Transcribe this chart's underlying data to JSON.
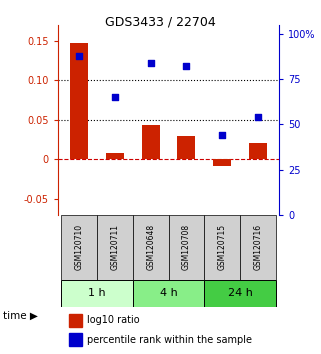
{
  "title": "GDS3433 / 22704",
  "samples": [
    "GSM120710",
    "GSM120711",
    "GSM120648",
    "GSM120708",
    "GSM120715",
    "GSM120716"
  ],
  "log10_ratio": [
    0.147,
    0.008,
    0.044,
    0.029,
    -0.008,
    0.021
  ],
  "percentile_rank": [
    88,
    65,
    84,
    82,
    44,
    54
  ],
  "groups": [
    {
      "label": "1 h",
      "samples": [
        0,
        1
      ],
      "color": "#ccffcc"
    },
    {
      "label": "4 h",
      "samples": [
        2,
        3
      ],
      "color": "#88ee88"
    },
    {
      "label": "24 h",
      "samples": [
        4,
        5
      ],
      "color": "#44cc44"
    }
  ],
  "bar_color": "#cc2200",
  "dot_color": "#0000cc",
  "ylim_left": [
    -0.07,
    0.17
  ],
  "ylim_right": [
    0,
    105
  ],
  "yticks_left": [
    -0.05,
    0.0,
    0.05,
    0.1,
    0.15
  ],
  "yticks_right": [
    0,
    25,
    50,
    75,
    100
  ],
  "ytick_labels_left": [
    "-0.05",
    "0",
    "0.05",
    "0.10",
    "0.15"
  ],
  "ytick_labels_right": [
    "0",
    "25",
    "50",
    "75",
    "100%"
  ],
  "hlines": [
    0.05,
    0.1
  ],
  "zero_line_color": "#cc0000",
  "grid_line_style": "dotted",
  "grid_line_color": "black",
  "label_log10": "log10 ratio",
  "label_pct": "percentile rank within the sample",
  "time_label": "time",
  "bg_color_samples": "#d0d0d0"
}
